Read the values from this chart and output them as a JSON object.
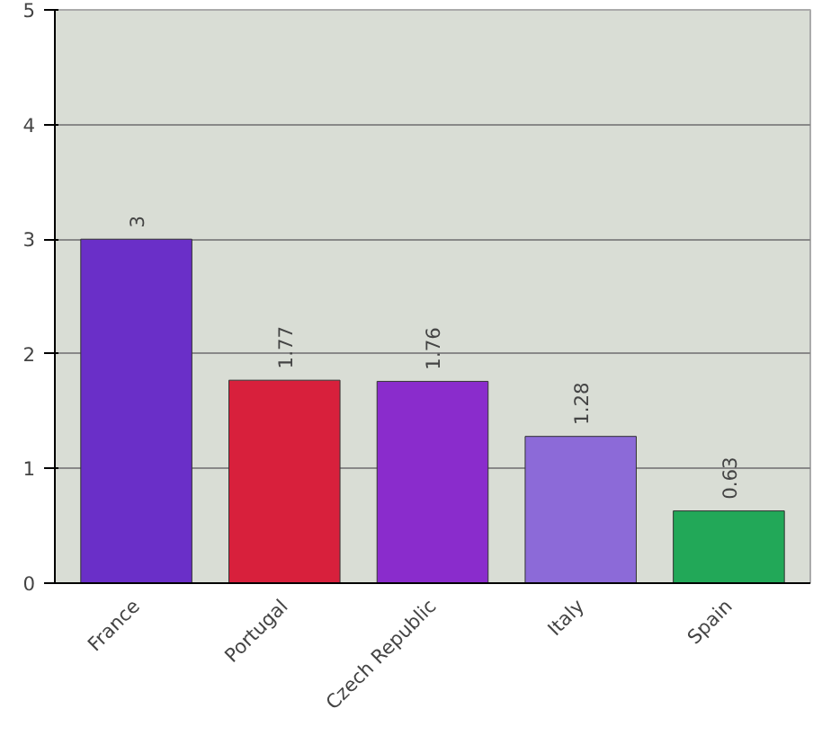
{
  "chart_data": {
    "type": "bar",
    "categories": [
      "France",
      "Portugal",
      "Czech Republic",
      "Italy",
      "Spain"
    ],
    "values": [
      3,
      1.77,
      1.76,
      1.28,
      0.63
    ],
    "colors": [
      "#6a2fc8",
      "#d8203c",
      "#8a2ccc",
      "#8c6ad8",
      "#22a858"
    ],
    "ylim": [
      0,
      5
    ],
    "yticks": [
      0,
      1,
      2,
      3,
      4,
      5
    ],
    "grid": "y",
    "data_labels": true
  }
}
